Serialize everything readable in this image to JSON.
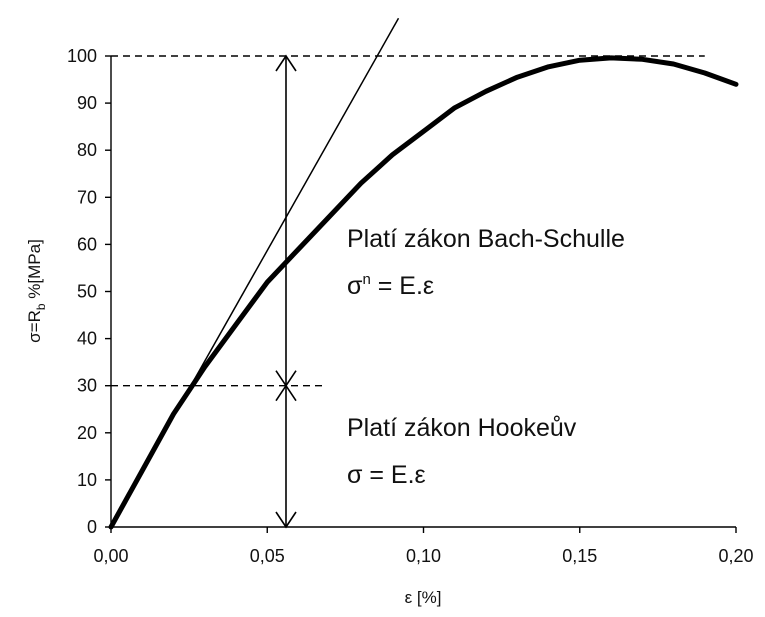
{
  "chart_data": {
    "type": "line",
    "title": "",
    "xlabel": "ε [%]",
    "ylabel": "σ=R",
    "ylabel_subscript": "b",
    "ylabel_suffix": " %[MPa]",
    "xlim": [
      0,
      0.2
    ],
    "ylim": [
      0,
      100
    ],
    "x_ticks": [
      "0,00",
      "0,05",
      "0,10",
      "0,15",
      "0,20"
    ],
    "y_ticks": [
      "0",
      "10",
      "20",
      "30",
      "40",
      "50",
      "60",
      "70",
      "80",
      "90",
      "100"
    ],
    "grid": false,
    "legend": "none",
    "series": [
      {
        "x": [
          0.0,
          0.01,
          0.02,
          0.03,
          0.04,
          0.05,
          0.06,
          0.07,
          0.08,
          0.09,
          0.1,
          0.11,
          0.12,
          0.13,
          0.14,
          0.15,
          0.16,
          0.17,
          0.18,
          0.19,
          0.2
        ],
        "values": [
          0,
          12,
          24,
          34,
          43,
          52,
          59,
          66,
          73,
          79,
          84,
          89,
          92.5,
          95.5,
          97.7,
          99.1,
          99.6,
          99.3,
          98.3,
          96.4,
          94
        ]
      },
      {
        "x": [
          0.0,
          0.092
        ],
        "values": [
          0,
          108
        ]
      }
    ],
    "reference_lines": {
      "upper": {
        "y": 100,
        "x_range": [
          0,
          0.19
        ]
      },
      "lower": {
        "y": 30,
        "x_range": [
          0,
          0.068
        ]
      }
    },
    "arrows": {
      "x": 0.056,
      "segments": [
        {
          "from": 100,
          "to": 30
        },
        {
          "from": 30,
          "to": 0
        }
      ]
    },
    "annotations": {
      "upper_title": "Platí zákon Bach-Schulle",
      "upper_formula_base": "σ",
      "upper_formula_exp": "n",
      "upper_formula_rest": " = E.ε",
      "lower_title": "Platí zákon Hookeův",
      "lower_formula": "σ = E.ε"
    },
    "colors": {
      "curve": "#000000",
      "line": "#000000",
      "text": "#111111"
    }
  }
}
